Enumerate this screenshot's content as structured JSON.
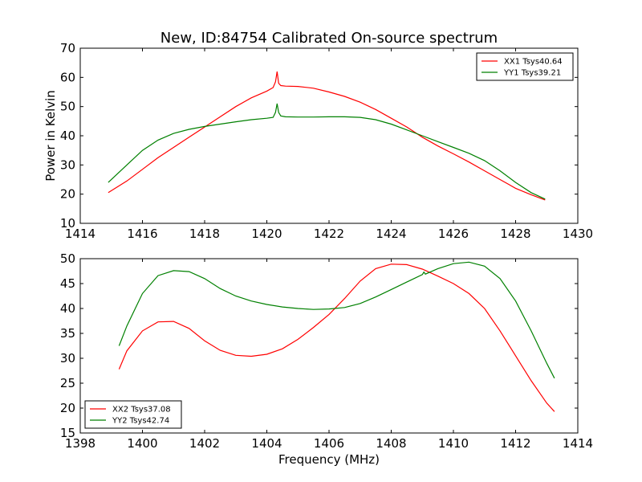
{
  "chart_data": [
    {
      "type": "line",
      "title": "New, ID:84754 Calibrated On-source spectrum",
      "xlabel": "",
      "ylabel": "Power in Kelvin",
      "xlim": [
        1414,
        1430
      ],
      "ylim": [
        10,
        70
      ],
      "xticks": [
        1414,
        1416,
        1418,
        1420,
        1422,
        1424,
        1426,
        1428,
        1430
      ],
      "yticks": [
        10,
        20,
        30,
        40,
        50,
        60,
        70
      ],
      "grid": false,
      "legend": "top-right",
      "series": [
        {
          "name": "XX1 Tsys40.64",
          "color": "#ff0000",
          "x": [
            1414.9,
            1415.5,
            1416.0,
            1416.5,
            1417.0,
            1417.5,
            1418.0,
            1418.5,
            1419.0,
            1419.5,
            1420.0,
            1420.2,
            1420.28,
            1420.33,
            1420.38,
            1420.45,
            1420.6,
            1421.0,
            1421.5,
            1422.0,
            1422.5,
            1423.0,
            1423.5,
            1424.0,
            1424.5,
            1425.0,
            1425.5,
            1426.0,
            1426.5,
            1427.0,
            1427.5,
            1428.0,
            1428.5,
            1428.95
          ],
          "y": [
            20.5,
            24.5,
            28.5,
            32.5,
            36.0,
            39.5,
            43.0,
            46.5,
            50.0,
            53.0,
            55.3,
            56.5,
            58.5,
            62.0,
            58.0,
            57.2,
            57.0,
            56.9,
            56.3,
            55.0,
            53.5,
            51.5,
            49.0,
            46.0,
            43.0,
            39.5,
            36.5,
            33.8,
            31.0,
            28.0,
            25.0,
            22.0,
            19.8,
            18.0
          ]
        },
        {
          "name": "YY1 Tsys39.21",
          "color": "#008000",
          "x": [
            1414.9,
            1415.5,
            1416.0,
            1416.5,
            1417.0,
            1417.5,
            1418.0,
            1418.5,
            1419.0,
            1419.5,
            1420.0,
            1420.2,
            1420.28,
            1420.33,
            1420.38,
            1420.45,
            1420.6,
            1421.0,
            1421.5,
            1422.0,
            1422.5,
            1423.0,
            1423.5,
            1424.0,
            1424.5,
            1425.0,
            1425.5,
            1426.0,
            1426.5,
            1427.0,
            1427.5,
            1428.0,
            1428.5,
            1428.95
          ],
          "y": [
            24.0,
            30.0,
            35.0,
            38.5,
            40.8,
            42.2,
            43.2,
            44.0,
            44.8,
            45.5,
            46.0,
            46.3,
            48.0,
            51.0,
            48.0,
            46.8,
            46.5,
            46.4,
            46.4,
            46.5,
            46.5,
            46.3,
            45.5,
            44.0,
            42.0,
            40.0,
            38.0,
            36.0,
            34.0,
            31.5,
            28.0,
            24.0,
            20.5,
            18.3
          ]
        }
      ]
    },
    {
      "type": "line",
      "title": "",
      "xlabel": "Frequency (MHz)",
      "ylabel": "",
      "xlim": [
        1398,
        1414
      ],
      "ylim": [
        15,
        50
      ],
      "xticks": [
        1398,
        1400,
        1402,
        1404,
        1406,
        1408,
        1410,
        1412,
        1414
      ],
      "yticks": [
        15,
        20,
        25,
        30,
        35,
        40,
        45,
        50
      ],
      "grid": false,
      "legend": "bottom-left",
      "series": [
        {
          "name": "XX2 Tsys37.08",
          "color": "#ff0000",
          "x": [
            1399.25,
            1399.5,
            1400.0,
            1400.5,
            1401.0,
            1401.5,
            1402.0,
            1402.5,
            1403.0,
            1403.5,
            1404.0,
            1404.5,
            1405.0,
            1405.5,
            1406.0,
            1406.5,
            1407.0,
            1407.5,
            1408.0,
            1408.5,
            1409.0,
            1409.5,
            1410.0,
            1410.5,
            1411.0,
            1411.5,
            1412.0,
            1412.5,
            1413.0,
            1413.25
          ],
          "y": [
            27.8,
            31.5,
            35.5,
            37.3,
            37.4,
            36.0,
            33.5,
            31.6,
            30.6,
            30.4,
            30.8,
            31.9,
            33.8,
            36.2,
            38.8,
            42.0,
            45.5,
            48.0,
            48.9,
            48.8,
            47.9,
            46.5,
            45.0,
            43.0,
            40.0,
            35.5,
            30.5,
            25.5,
            21.0,
            19.3
          ]
        },
        {
          "name": "YY2 Tsys42.74",
          "color": "#008000",
          "x": [
            1399.25,
            1399.5,
            1400.0,
            1400.5,
            1401.0,
            1401.5,
            1402.0,
            1402.5,
            1403.0,
            1403.5,
            1404.0,
            1404.5,
            1405.0,
            1405.5,
            1406.0,
            1406.5,
            1407.0,
            1407.5,
            1408.0,
            1408.5,
            1409.0,
            1409.05,
            1409.1,
            1409.5,
            1410.0,
            1410.5,
            1411.0,
            1411.5,
            1412.0,
            1412.5,
            1413.0,
            1413.25
          ],
          "y": [
            32.5,
            36.5,
            43.0,
            46.6,
            47.6,
            47.4,
            46.0,
            44.0,
            42.5,
            41.5,
            40.8,
            40.3,
            40.0,
            39.8,
            39.9,
            40.2,
            41.0,
            42.3,
            43.8,
            45.3,
            46.8,
            47.3,
            46.9,
            48.0,
            49.0,
            49.3,
            48.5,
            46.0,
            41.5,
            35.5,
            29.0,
            26.0
          ]
        }
      ]
    }
  ]
}
